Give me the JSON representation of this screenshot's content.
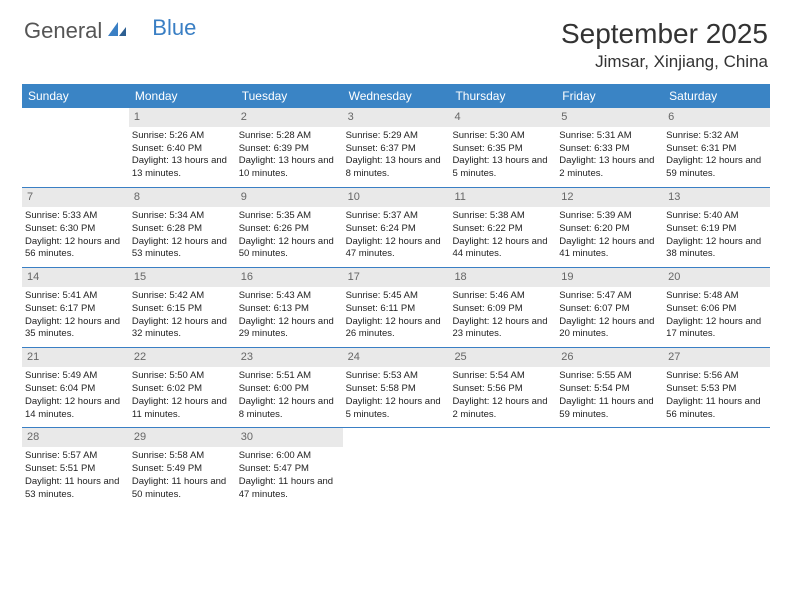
{
  "logo": {
    "text1": "General",
    "text2": "Blue"
  },
  "title": "September 2025",
  "location": "Jimsar, Xinjiang, China",
  "header_bg": "#3a84c5",
  "rule_color": "#3a7fc4",
  "daynum_bg": "#e9e9e9",
  "day_names": [
    "Sunday",
    "Monday",
    "Tuesday",
    "Wednesday",
    "Thursday",
    "Friday",
    "Saturday"
  ],
  "first_weekday": 1,
  "days": [
    {
      "n": "1",
      "sunrise": "5:26 AM",
      "sunset": "6:40 PM",
      "daylight": "13 hours and 13 minutes."
    },
    {
      "n": "2",
      "sunrise": "5:28 AM",
      "sunset": "6:39 PM",
      "daylight": "13 hours and 10 minutes."
    },
    {
      "n": "3",
      "sunrise": "5:29 AM",
      "sunset": "6:37 PM",
      "daylight": "13 hours and 8 minutes."
    },
    {
      "n": "4",
      "sunrise": "5:30 AM",
      "sunset": "6:35 PM",
      "daylight": "13 hours and 5 minutes."
    },
    {
      "n": "5",
      "sunrise": "5:31 AM",
      "sunset": "6:33 PM",
      "daylight": "13 hours and 2 minutes."
    },
    {
      "n": "6",
      "sunrise": "5:32 AM",
      "sunset": "6:31 PM",
      "daylight": "12 hours and 59 minutes."
    },
    {
      "n": "7",
      "sunrise": "5:33 AM",
      "sunset": "6:30 PM",
      "daylight": "12 hours and 56 minutes."
    },
    {
      "n": "8",
      "sunrise": "5:34 AM",
      "sunset": "6:28 PM",
      "daylight": "12 hours and 53 minutes."
    },
    {
      "n": "9",
      "sunrise": "5:35 AM",
      "sunset": "6:26 PM",
      "daylight": "12 hours and 50 minutes."
    },
    {
      "n": "10",
      "sunrise": "5:37 AM",
      "sunset": "6:24 PM",
      "daylight": "12 hours and 47 minutes."
    },
    {
      "n": "11",
      "sunrise": "5:38 AM",
      "sunset": "6:22 PM",
      "daylight": "12 hours and 44 minutes."
    },
    {
      "n": "12",
      "sunrise": "5:39 AM",
      "sunset": "6:20 PM",
      "daylight": "12 hours and 41 minutes."
    },
    {
      "n": "13",
      "sunrise": "5:40 AM",
      "sunset": "6:19 PM",
      "daylight": "12 hours and 38 minutes."
    },
    {
      "n": "14",
      "sunrise": "5:41 AM",
      "sunset": "6:17 PM",
      "daylight": "12 hours and 35 minutes."
    },
    {
      "n": "15",
      "sunrise": "5:42 AM",
      "sunset": "6:15 PM",
      "daylight": "12 hours and 32 minutes."
    },
    {
      "n": "16",
      "sunrise": "5:43 AM",
      "sunset": "6:13 PM",
      "daylight": "12 hours and 29 minutes."
    },
    {
      "n": "17",
      "sunrise": "5:45 AM",
      "sunset": "6:11 PM",
      "daylight": "12 hours and 26 minutes."
    },
    {
      "n": "18",
      "sunrise": "5:46 AM",
      "sunset": "6:09 PM",
      "daylight": "12 hours and 23 minutes."
    },
    {
      "n": "19",
      "sunrise": "5:47 AM",
      "sunset": "6:07 PM",
      "daylight": "12 hours and 20 minutes."
    },
    {
      "n": "20",
      "sunrise": "5:48 AM",
      "sunset": "6:06 PM",
      "daylight": "12 hours and 17 minutes."
    },
    {
      "n": "21",
      "sunrise": "5:49 AM",
      "sunset": "6:04 PM",
      "daylight": "12 hours and 14 minutes."
    },
    {
      "n": "22",
      "sunrise": "5:50 AM",
      "sunset": "6:02 PM",
      "daylight": "12 hours and 11 minutes."
    },
    {
      "n": "23",
      "sunrise": "5:51 AM",
      "sunset": "6:00 PM",
      "daylight": "12 hours and 8 minutes."
    },
    {
      "n": "24",
      "sunrise": "5:53 AM",
      "sunset": "5:58 PM",
      "daylight": "12 hours and 5 minutes."
    },
    {
      "n": "25",
      "sunrise": "5:54 AM",
      "sunset": "5:56 PM",
      "daylight": "12 hours and 2 minutes."
    },
    {
      "n": "26",
      "sunrise": "5:55 AM",
      "sunset": "5:54 PM",
      "daylight": "11 hours and 59 minutes."
    },
    {
      "n": "27",
      "sunrise": "5:56 AM",
      "sunset": "5:53 PM",
      "daylight": "11 hours and 56 minutes."
    },
    {
      "n": "28",
      "sunrise": "5:57 AM",
      "sunset": "5:51 PM",
      "daylight": "11 hours and 53 minutes."
    },
    {
      "n": "29",
      "sunrise": "5:58 AM",
      "sunset": "5:49 PM",
      "daylight": "11 hours and 50 minutes."
    },
    {
      "n": "30",
      "sunrise": "6:00 AM",
      "sunset": "5:47 PM",
      "daylight": "11 hours and 47 minutes."
    }
  ],
  "labels": {
    "sunrise": "Sunrise:",
    "sunset": "Sunset:",
    "daylight": "Daylight:"
  }
}
